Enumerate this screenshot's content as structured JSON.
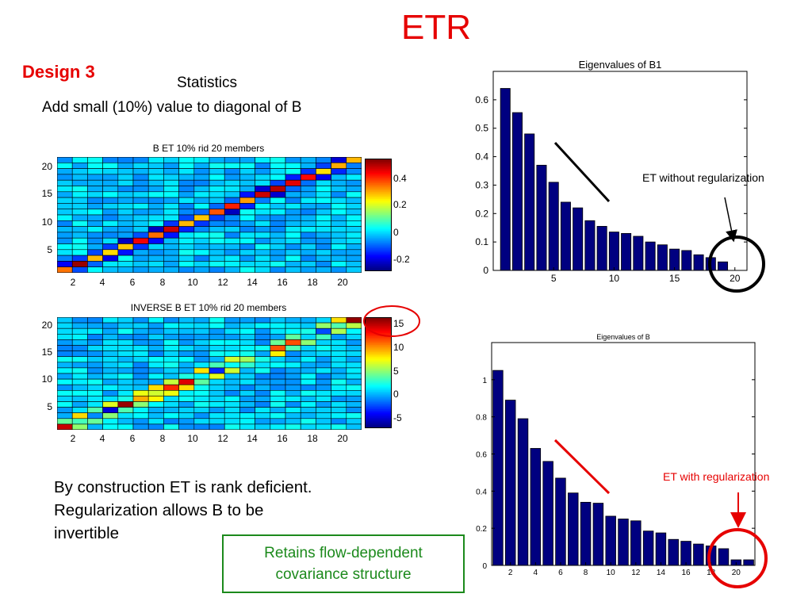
{
  "slide": {
    "title": "ETR",
    "design_label": "Design 3",
    "stats_heading": "Statistics",
    "stats_subheading": "Add small (10%) value to diagonal of B",
    "body_lines": [
      "By construction ET is rank deficient.",
      "Regularization allows B to be",
      "invertible"
    ],
    "green_box_lines": [
      "Retains flow-dependent",
      "covariance structure"
    ],
    "callout_top": "ET without regularization",
    "callout_bottom": "ET with regularization",
    "colors": {
      "title": "#e60000",
      "callout_bottom": "#e60000",
      "green_box": "#1c8a1c",
      "bars": "#000080",
      "circle_top": "#000000",
      "circle_bottom": "#e60000"
    }
  },
  "chart_data": [
    {
      "type": "heatmap",
      "title": "B ET 10% rid 20 members",
      "x_ticks": [
        "2",
        "4",
        "6",
        "8",
        "10",
        "12",
        "14",
        "16",
        "18",
        "20"
      ],
      "y_ticks": [
        "20",
        "15",
        "10",
        "5"
      ],
      "colorbar_ticks": [
        "0.4",
        "0.2",
        "0",
        "-0.2"
      ],
      "clim": [
        -0.3,
        0.55
      ],
      "dimensions": [
        20,
        20
      ]
    },
    {
      "type": "heatmap",
      "title": "INVERSE B ET 10% rid 20 members",
      "x_ticks": [
        "2",
        "4",
        "6",
        "8",
        "10",
        "12",
        "14",
        "16",
        "18",
        "20"
      ],
      "y_ticks": [
        "20",
        "15",
        "10",
        "5"
      ],
      "colorbar_ticks": [
        "15",
        "10",
        "5",
        "0",
        "-5"
      ],
      "clim": [
        -7,
        16
      ],
      "dimensions": [
        20,
        20
      ]
    },
    {
      "type": "bar",
      "title": "Eigenvalues of B1",
      "x": [
        1,
        2,
        3,
        4,
        5,
        6,
        7,
        8,
        9,
        10,
        11,
        12,
        13,
        14,
        15,
        16,
        17,
        18,
        19,
        20
      ],
      "values": [
        0.64,
        0.555,
        0.48,
        0.37,
        0.31,
        0.24,
        0.22,
        0.175,
        0.155,
        0.135,
        0.13,
        0.12,
        0.1,
        0.09,
        0.075,
        0.07,
        0.055,
        0.045,
        0.03,
        0
      ],
      "x_ticks": [
        "5",
        "10",
        "15",
        "20"
      ],
      "y_ticks": [
        "0",
        "0.1",
        "0.2",
        "0.3",
        "0.4",
        "0.5",
        "0.6"
      ],
      "xlim": [
        0,
        21
      ],
      "ylim": [
        0,
        0.7
      ]
    },
    {
      "type": "bar",
      "title": "Eigenvalues of B",
      "x": [
        1,
        2,
        3,
        4,
        5,
        6,
        7,
        8,
        9,
        10,
        11,
        12,
        13,
        14,
        15,
        16,
        17,
        18,
        19,
        20,
        21
      ],
      "values": [
        1.05,
        0.89,
        0.79,
        0.63,
        0.56,
        0.47,
        0.39,
        0.34,
        0.335,
        0.265,
        0.25,
        0.24,
        0.185,
        0.175,
        0.14,
        0.13,
        0.115,
        0.105,
        0.09,
        0.03,
        0.03
      ],
      "x_ticks": [
        "2",
        "4",
        "6",
        "8",
        "10",
        "12",
        "14",
        "16",
        "18",
        "20"
      ],
      "y_ticks": [
        "0",
        "0.2",
        "0.4",
        "0.6",
        "0.8",
        "1"
      ],
      "xlim": [
        0.5,
        21.5
      ],
      "ylim": [
        0,
        1.2
      ]
    }
  ]
}
